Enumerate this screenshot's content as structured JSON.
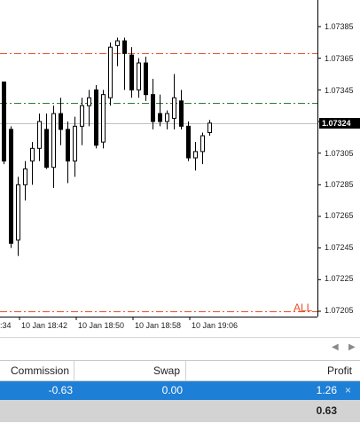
{
  "chart": {
    "symbol_hint": "",
    "price_labels": [
      "1.07385",
      "1.07365",
      "1.07345",
      "1.07324",
      "1.07305",
      "1.07285",
      "1.07265",
      "1.07245",
      "1.07225",
      "1.07205"
    ],
    "current_price": "1.07324",
    "time_labels": [
      ":34",
      "10 Jan 18:42",
      "10 Jan 18:50",
      "10 Jan 18:58",
      "10 Jan 19:06"
    ],
    "all_label": "ALL",
    "colors": {
      "bull_body": "#ffffff",
      "bear_body": "#000000",
      "red_level": "#e8502a",
      "green_level": "#2e7d32",
      "bid_line": "#c0c0c0"
    }
  },
  "chart_data": {
    "type": "candlestick",
    "price_range": [
      1.07195,
      1.07405
    ],
    "levels": [
      {
        "price": 1.07368,
        "style": "dash-dot",
        "color": "#e8502a"
      },
      {
        "price": 1.07337,
        "style": "dash-dot",
        "color": "#2e7d32"
      },
      {
        "price": 1.07324,
        "style": "solid",
        "color": "#c0c0c0"
      },
      {
        "price": 1.07205,
        "style": "dash-dot",
        "color": "#e8502a"
      }
    ],
    "candles": [
      {
        "o": 1.0735,
        "h": 1.0735,
        "l": 1.07298,
        "c": 1.073
      },
      {
        "o": 1.0732,
        "h": 1.07322,
        "l": 1.07245,
        "c": 1.07248
      },
      {
        "o": 1.0725,
        "h": 1.0729,
        "l": 1.0724,
        "c": 1.07285
      },
      {
        "o": 1.07285,
        "h": 1.073,
        "l": 1.07275,
        "c": 1.07295
      },
      {
        "o": 1.073,
        "h": 1.07312,
        "l": 1.07285,
        "c": 1.07308
      },
      {
        "o": 1.07308,
        "h": 1.0733,
        "l": 1.073,
        "c": 1.07325
      },
      {
        "o": 1.0732,
        "h": 1.0733,
        "l": 1.07295,
        "c": 1.07296
      },
      {
        "o": 1.07296,
        "h": 1.07335,
        "l": 1.07283,
        "c": 1.0733
      },
      {
        "o": 1.0733,
        "h": 1.0734,
        "l": 1.0731,
        "c": 1.0732
      },
      {
        "o": 1.0732,
        "h": 1.07325,
        "l": 1.07286,
        "c": 1.073
      },
      {
        "o": 1.073,
        "h": 1.07328,
        "l": 1.0729,
        "c": 1.07322
      },
      {
        "o": 1.07322,
        "h": 1.0734,
        "l": 1.0731,
        "c": 1.07335
      },
      {
        "o": 1.07335,
        "h": 1.07345,
        "l": 1.07322,
        "c": 1.0734
      },
      {
        "o": 1.07345,
        "h": 1.07348,
        "l": 1.07308,
        "c": 1.0731
      },
      {
        "o": 1.07312,
        "h": 1.07345,
        "l": 1.07308,
        "c": 1.07342
      },
      {
        "o": 1.0734,
        "h": 1.07375,
        "l": 1.07335,
        "c": 1.07372
      },
      {
        "o": 1.07373,
        "h": 1.07378,
        "l": 1.0736,
        "c": 1.07376
      },
      {
        "o": 1.07376,
        "h": 1.07378,
        "l": 1.07345,
        "c": 1.07368
      },
      {
        "o": 1.07367,
        "h": 1.07372,
        "l": 1.0734,
        "c": 1.07345
      },
      {
        "o": 1.07345,
        "h": 1.07365,
        "l": 1.0734,
        "c": 1.07362
      },
      {
        "o": 1.07362,
        "h": 1.07366,
        "l": 1.07338,
        "c": 1.07342
      },
      {
        "o": 1.07342,
        "h": 1.07352,
        "l": 1.0732,
        "c": 1.07325
      },
      {
        "o": 1.0733,
        "h": 1.07342,
        "l": 1.07322,
        "c": 1.07325
      },
      {
        "o": 1.07325,
        "h": 1.07332,
        "l": 1.0732,
        "c": 1.0733
      },
      {
        "o": 1.07327,
        "h": 1.07355,
        "l": 1.0732,
        "c": 1.0734
      },
      {
        "o": 1.07338,
        "h": 1.07345,
        "l": 1.0732,
        "c": 1.07322
      },
      {
        "o": 1.07322,
        "h": 1.07325,
        "l": 1.073,
        "c": 1.07302
      },
      {
        "o": 1.07302,
        "h": 1.07312,
        "l": 1.07294,
        "c": 1.07306
      },
      {
        "o": 1.07306,
        "h": 1.07318,
        "l": 1.07298,
        "c": 1.07316
      },
      {
        "o": 1.07318,
        "h": 1.07326,
        "l": 1.07316,
        "c": 1.07324
      }
    ]
  },
  "terminal": {
    "headers": {
      "commission": "Commission",
      "swap": "Swap",
      "profit": "Profit"
    },
    "row": {
      "commission": "-0.63",
      "swap": "0.00",
      "profit": "1.26"
    },
    "close_glyph": "×",
    "total": "0.63"
  },
  "scroll": {
    "left": "◀",
    "right": "▶"
  }
}
